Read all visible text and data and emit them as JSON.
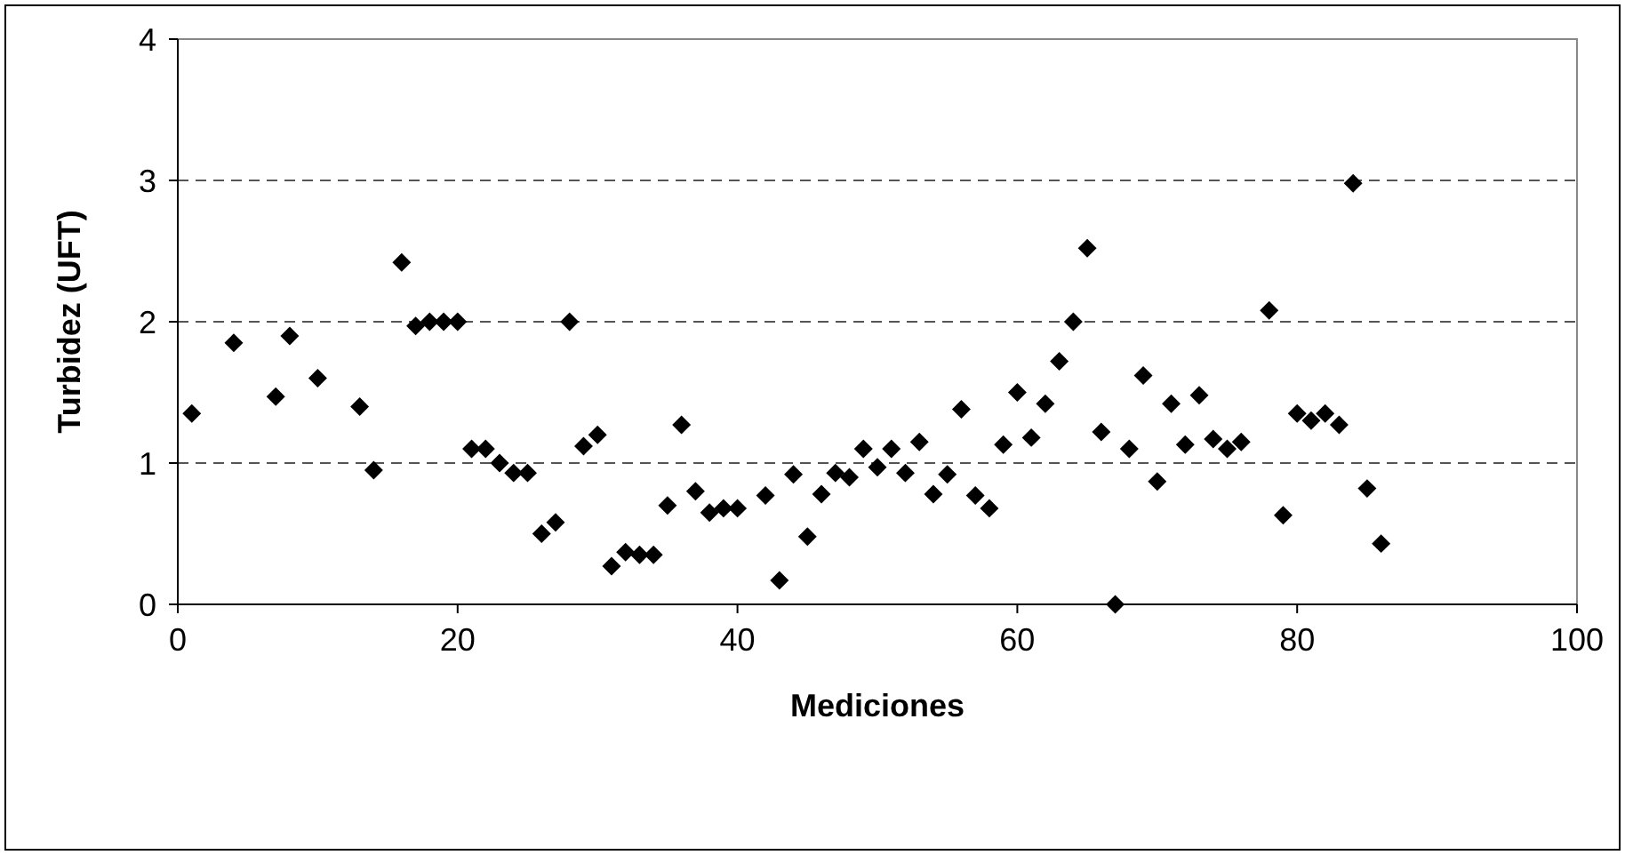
{
  "chart_data": {
    "type": "scatter",
    "xlabel": "Mediciones",
    "ylabel": "Turbidez (UFT)",
    "marker": "diamond",
    "grid": "y",
    "line_style": "dashed",
    "xlim": [
      0,
      100
    ],
    "ylim": [
      0,
      4
    ],
    "xticks": [
      0,
      20,
      40,
      60,
      80,
      100
    ],
    "yticks": [
      0,
      1,
      2,
      3,
      4
    ],
    "series": [
      {
        "color": "#000000",
        "x": [
          1,
          4,
          7,
          8,
          10,
          13,
          14,
          16,
          17,
          18,
          19,
          20,
          21,
          22,
          23,
          24,
          25,
          26,
          27,
          28,
          29,
          30,
          31,
          32,
          33,
          34,
          35,
          36,
          37,
          38,
          39,
          40,
          42,
          43,
          44,
          45,
          46,
          47,
          48,
          49,
          50,
          51,
          52,
          53,
          54,
          55,
          56,
          57,
          58,
          59,
          60,
          61,
          62,
          63,
          64,
          65,
          66,
          67,
          68,
          69,
          70,
          71,
          72,
          73,
          74,
          75,
          76,
          78,
          79,
          80,
          81,
          82,
          83,
          84,
          85,
          86
        ],
        "values": [
          1.35,
          1.85,
          1.47,
          1.9,
          1.6,
          1.4,
          0.95,
          2.42,
          1.97,
          2.0,
          2.0,
          2.0,
          1.1,
          1.1,
          1.0,
          0.93,
          0.93,
          0.5,
          0.58,
          2.0,
          1.12,
          1.2,
          0.27,
          0.37,
          0.35,
          0.35,
          0.7,
          1.27,
          0.8,
          0.65,
          0.68,
          0.68,
          0.77,
          0.17,
          0.92,
          0.48,
          0.78,
          0.93,
          0.9,
          1.1,
          0.97,
          1.1,
          0.93,
          1.15,
          0.78,
          0.92,
          1.38,
          0.77,
          0.68,
          1.13,
          1.5,
          1.18,
          1.42,
          1.72,
          2.0,
          2.52,
          1.22,
          0.0,
          1.1,
          1.62,
          0.87,
          1.42,
          1.13,
          1.48,
          1.17,
          1.1,
          1.15,
          2.08,
          0.63,
          1.35,
          1.3,
          1.35,
          1.27,
          2.98,
          0.82,
          0.43
        ]
      }
    ]
  }
}
